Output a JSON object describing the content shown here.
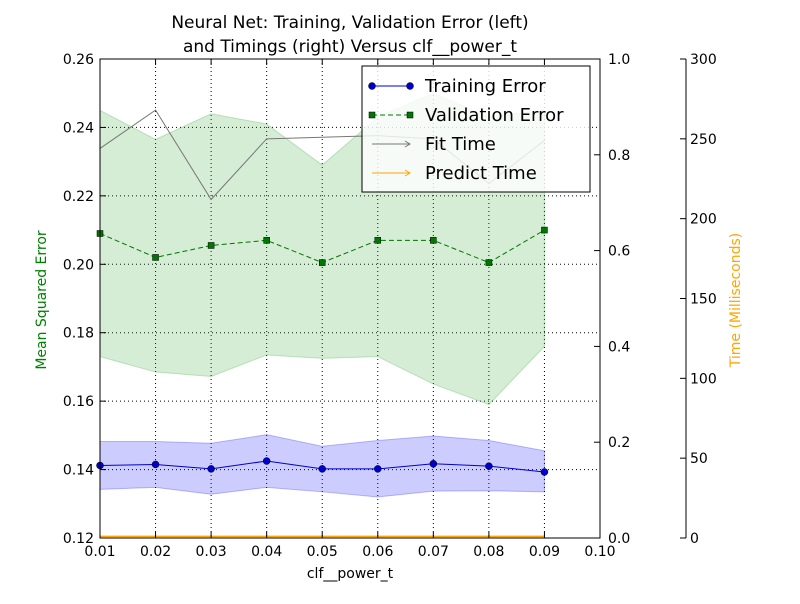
{
  "chart_data": {
    "type": "line",
    "title_line1": "Neural Net: Training, Validation Error (left)",
    "title_line2": "and Timings (right) Versus clf__power_t",
    "xlabel": "clf__power_t",
    "ylabel_left": "Mean Squared Error",
    "ylabel_right_time": "Time (Milliseconds)",
    "colors": {
      "training": "#0000cc",
      "training_band": "#0000ff",
      "validation": "#007700",
      "validation_band": "#2ca02c",
      "fit": "#777777",
      "predict": "#ffa500",
      "left_label": "#008000",
      "time_label": "#ffa500"
    },
    "xlim": [
      0.01,
      0.1
    ],
    "ylim_left": [
      0.12,
      0.26
    ],
    "ylim_right_fraction": [
      0.0,
      1.0
    ],
    "ylim_right_time": [
      0,
      300
    ],
    "grid": true,
    "legend_position": "top-right",
    "x_ticks": [
      "0.01",
      "0.02",
      "0.03",
      "0.04",
      "0.05",
      "0.06",
      "0.07",
      "0.08",
      "0.09",
      "0.10"
    ],
    "x_tick_values": [
      0.01,
      0.02,
      0.03,
      0.04,
      0.05,
      0.06,
      0.07,
      0.08,
      0.09,
      0.1
    ],
    "y_left_ticks": [
      "0.12",
      "0.14",
      "0.16",
      "0.18",
      "0.20",
      "0.22",
      "0.24",
      "0.26"
    ],
    "y_left_tick_values": [
      0.12,
      0.14,
      0.16,
      0.18,
      0.2,
      0.22,
      0.24,
      0.26
    ],
    "y_right_ticks": [
      "0.0",
      "0.2",
      "0.4",
      "0.6",
      "0.8",
      "1.0"
    ],
    "y_right_tick_values": [
      0.0,
      0.2,
      0.4,
      0.6,
      0.8,
      1.0
    ],
    "y_time_ticks": [
      "0",
      "50",
      "100",
      "150",
      "200",
      "250",
      "300"
    ],
    "y_time_tick_values": [
      0,
      50,
      100,
      150,
      200,
      250,
      300
    ],
    "x": [
      0.01,
      0.02,
      0.03,
      0.04,
      0.05,
      0.06,
      0.07,
      0.08,
      0.09
    ],
    "series": [
      {
        "name": "Training Error",
        "axis": "left",
        "values": [
          0.1412,
          0.1415,
          0.1402,
          0.1425,
          0.1402,
          0.1402,
          0.1417,
          0.141,
          0.1393
        ],
        "band_upper": [
          0.1482,
          0.1482,
          0.1477,
          0.1502,
          0.1468,
          0.1485,
          0.1498,
          0.1485,
          0.1455
        ],
        "band_lower": [
          0.1342,
          0.1348,
          0.1328,
          0.1348,
          0.1335,
          0.132,
          0.1337,
          0.1338,
          0.1335
        ]
      },
      {
        "name": "Validation Error",
        "axis": "left",
        "values": [
          0.209,
          0.202,
          0.2055,
          0.207,
          0.2005,
          0.207,
          0.207,
          0.2005,
          0.21
        ],
        "band_upper": [
          0.245,
          0.2365,
          0.244,
          0.241,
          0.229,
          0.243,
          0.25,
          0.243,
          0.245
        ],
        "band_lower": [
          0.173,
          0.1685,
          0.1672,
          0.1735,
          0.1725,
          0.173,
          0.165,
          0.159,
          0.176
        ]
      },
      {
        "name": "Fit Time",
        "axis": "time",
        "values": [
          244,
          268,
          212,
          250,
          251,
          252,
          250,
          222,
          249
        ]
      },
      {
        "name": "Predict Time",
        "axis": "time",
        "values": [
          1,
          1,
          1,
          1,
          1,
          1,
          1,
          1,
          1
        ]
      }
    ]
  }
}
